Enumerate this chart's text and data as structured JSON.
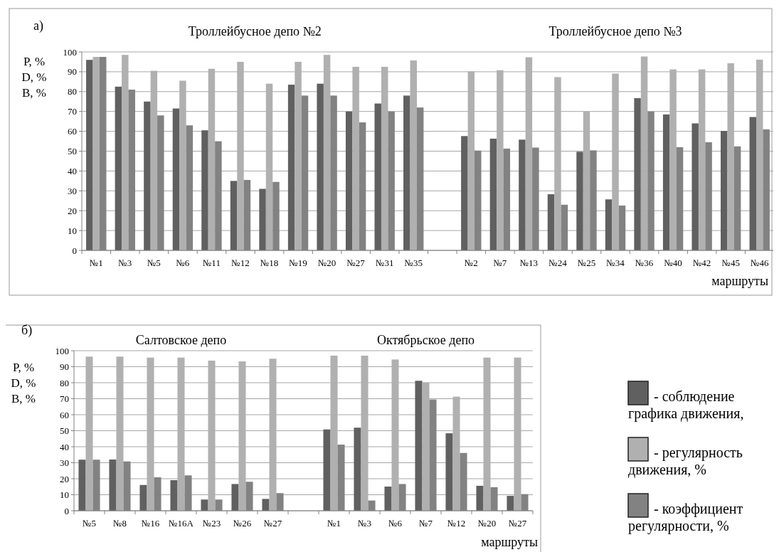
{
  "chart_data": [
    {
      "type": "bar",
      "title": "а)",
      "ylabel": "P, %\nD, %\nB, %",
      "xlabel": "маршруты",
      "annotations": [
        "Троллейбусное депо №2",
        "Троллейбусное депо №3"
      ],
      "categories": [
        "№1",
        "№3",
        "№5",
        "№6",
        "№11",
        "№12",
        "№18",
        "№19",
        "№20",
        "№27",
        "№31",
        "№35",
        null,
        "№2",
        "№7",
        "№13",
        "№24",
        "№25",
        "№34",
        "№36",
        "№40",
        "№42",
        "№45",
        "№46"
      ],
      "series": [
        {
          "color": "#606060",
          "values": [
            96,
            82.5,
            75,
            71.5,
            60.5,
            35,
            31,
            83.5,
            84,
            70,
            74,
            78,
            null,
            57.6,
            56.3,
            55.8,
            28.3,
            49.7,
            25.7,
            76.7,
            68.5,
            64,
            60.2,
            67.2
          ]
        },
        {
          "color": "#b0b0b0",
          "values": [
            97.5,
            98.5,
            90.5,
            85.5,
            91.5,
            95,
            84,
            95,
            98.5,
            92.5,
            92.5,
            95.7,
            null,
            90.2,
            90.8,
            97.3,
            87.3,
            70.1,
            89.1,
            97.7,
            91.2,
            91.2,
            94.3,
            96.1
          ]
        },
        {
          "color": "#828282",
          "values": [
            97.5,
            81,
            68,
            63,
            55,
            35.5,
            34.5,
            78,
            78,
            64.5,
            70,
            72,
            null,
            50.3,
            51.3,
            51.8,
            23,
            50.4,
            22.6,
            70,
            52,
            54.5,
            52.4,
            61
          ]
        }
      ],
      "ylim": [
        0,
        100
      ],
      "yticks": [
        0,
        10,
        20,
        30,
        40,
        50,
        60,
        70,
        80,
        90,
        100
      ],
      "grid": "y"
    },
    {
      "type": "bar",
      "title": "б)",
      "ylabel": "P, %\nD, %\nB, %",
      "xlabel": "маршруты",
      "annotations": [
        "Салтовское депо",
        "Октябрьское депо"
      ],
      "categories": [
        "№5",
        "№8",
        "№16",
        "№16А",
        "№23",
        "№26",
        "№27",
        null,
        "№1",
        "№3",
        "№6",
        "№7",
        "№12",
        "№20",
        "№27"
      ],
      "series": [
        {
          "name": "- соблюдение графика движения,",
          "color": "#606060",
          "values": [
            31.9,
            32,
            16.1,
            19.1,
            7,
            16.7,
            7.4,
            null,
            50.8,
            51.9,
            15.1,
            81.2,
            48.4,
            15.6,
            9.3
          ]
        },
        {
          "name": "- регулярность движения, %",
          "color": "#b0b0b0",
          "values": [
            96.3,
            96.3,
            95.7,
            95.7,
            93.8,
            93.3,
            95,
            null,
            96.9,
            96.9,
            94.5,
            80.1,
            71.3,
            95.7,
            95.7
          ]
        },
        {
          "name": "- коэффициент регулярности, %",
          "color": "#828282",
          "values": [
            31.9,
            30.8,
            20.9,
            22.1,
            7,
            18.1,
            11,
            null,
            41.3,
            6.4,
            16.7,
            69.5,
            36.1,
            14.7,
            10.4
          ]
        }
      ],
      "ylim": [
        0,
        100
      ],
      "yticks": [
        0,
        10,
        20,
        30,
        40,
        50,
        60,
        70,
        80,
        90,
        100
      ],
      "grid": "y",
      "legend": "right"
    }
  ]
}
